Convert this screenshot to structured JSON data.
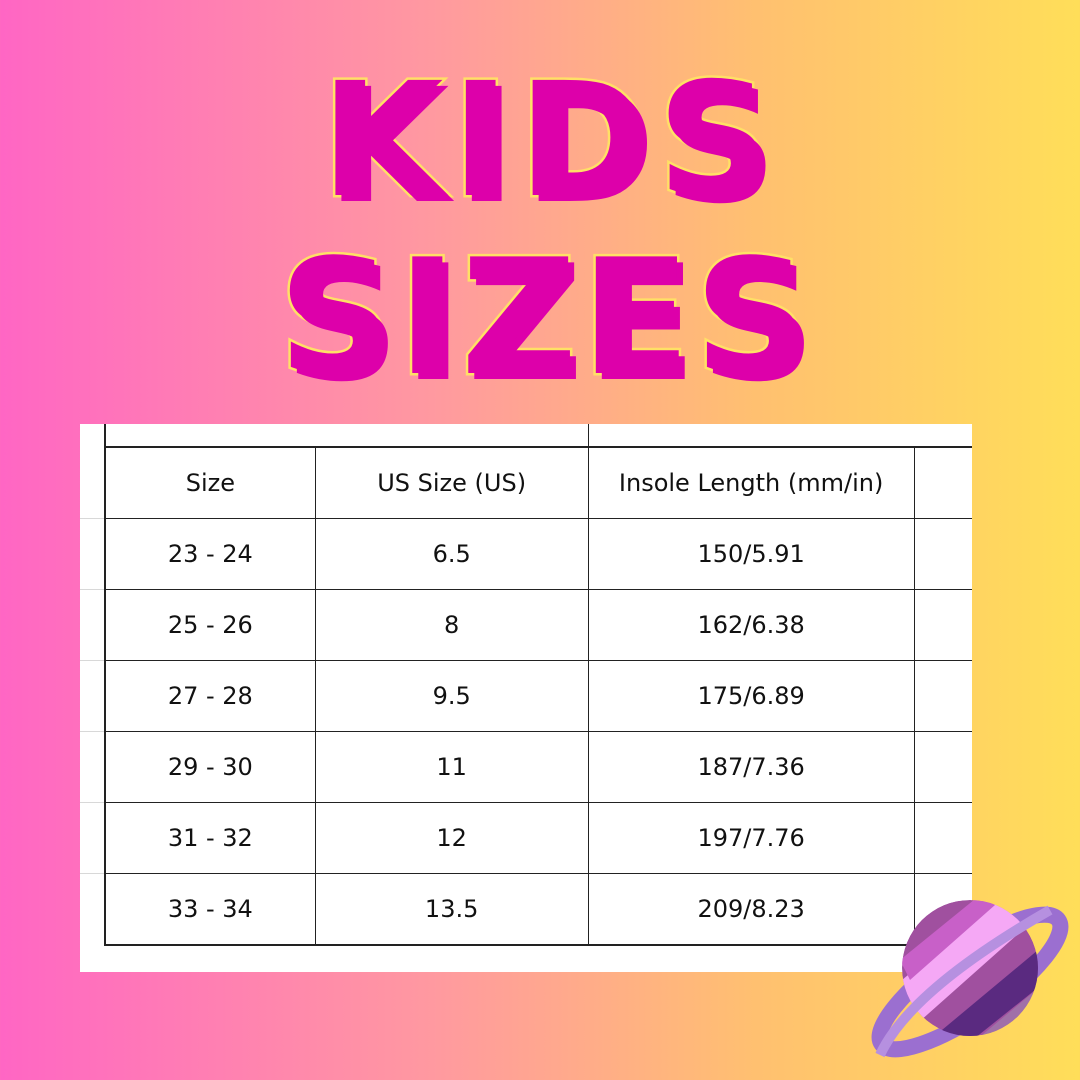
{
  "title": {
    "line1": "KIDS",
    "line2": "SIZES"
  },
  "colors": {
    "title_fill": "#dd00aa",
    "title_outline": "#ffe066",
    "bg_left": "#ff66c4",
    "bg_right": "#ffde59"
  },
  "table": {
    "headers": [
      "Size",
      "US Size (US)",
      "Insole Length (mm/in)"
    ],
    "rows": [
      [
        "23 - 24",
        "6.5",
        "150/5.91"
      ],
      [
        "25 - 26",
        "8",
        "162/6.38"
      ],
      [
        "27 - 28",
        "9.5",
        "175/6.89"
      ],
      [
        "29 - 30",
        "11",
        "187/7.36"
      ],
      [
        "31 - 32",
        "12",
        "197/7.76"
      ],
      [
        "33 - 34",
        "13.5",
        "209/8.23"
      ]
    ]
  },
  "decoration": {
    "icon": "planet-icon"
  }
}
